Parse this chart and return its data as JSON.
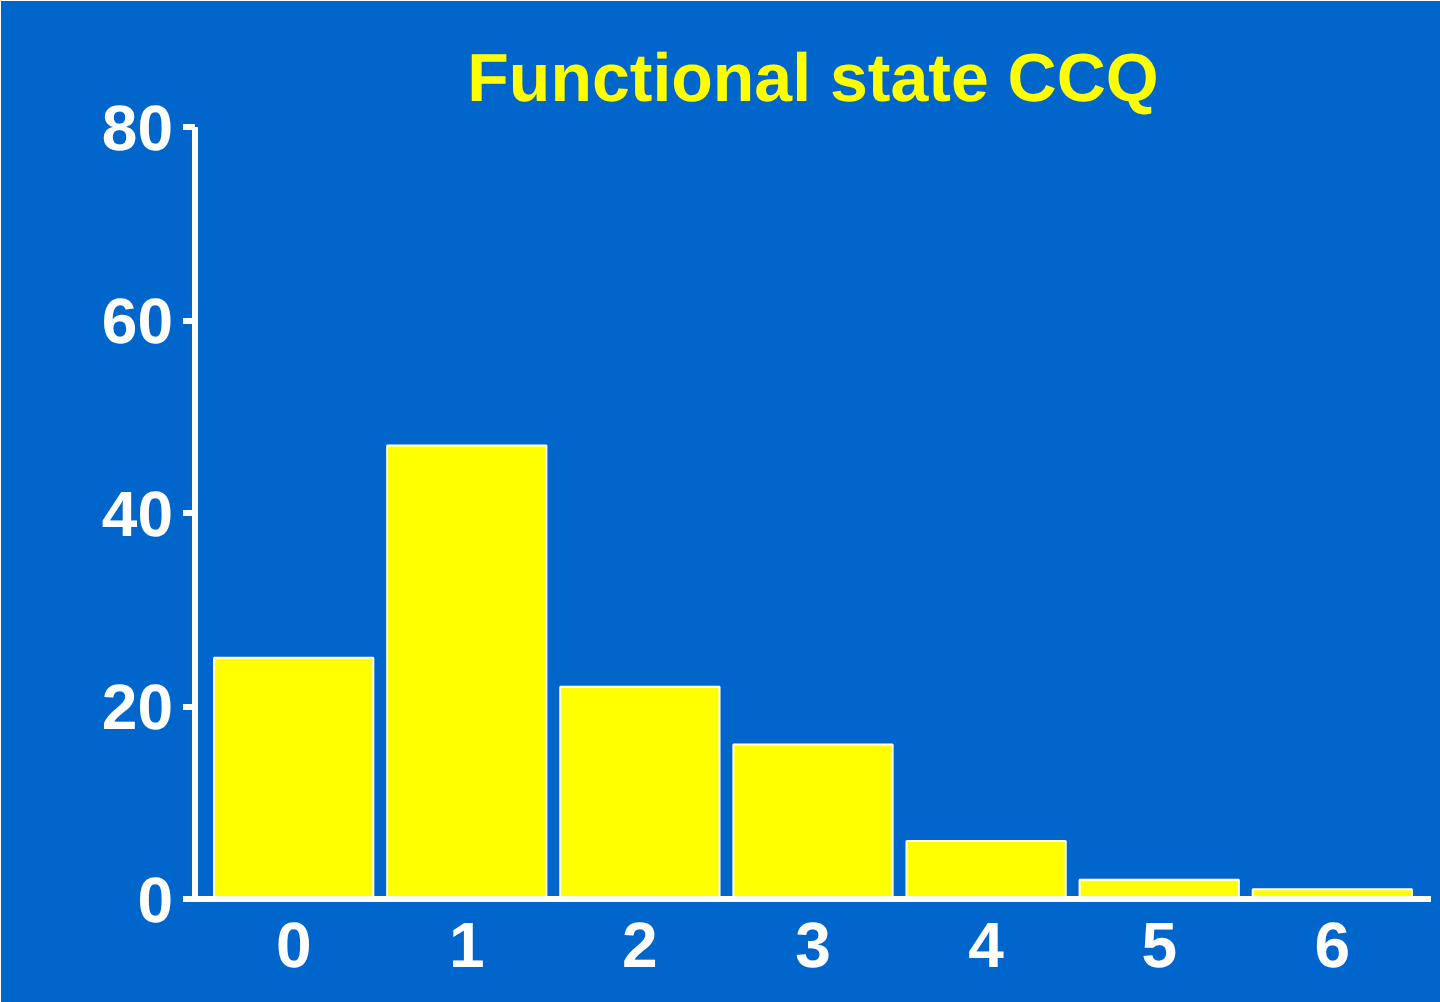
{
  "chart_data": {
    "type": "bar",
    "title": "Functional state CCQ",
    "categories": [
      "0",
      "1",
      "2",
      "3",
      "4",
      "5",
      "6"
    ],
    "values": [
      25,
      47,
      22,
      16,
      6,
      2,
      1
    ],
    "color": "#ffff00",
    "ylim": [
      0,
      80
    ],
    "yticks": [
      0,
      20,
      40,
      60,
      80
    ],
    "grid": false
  }
}
